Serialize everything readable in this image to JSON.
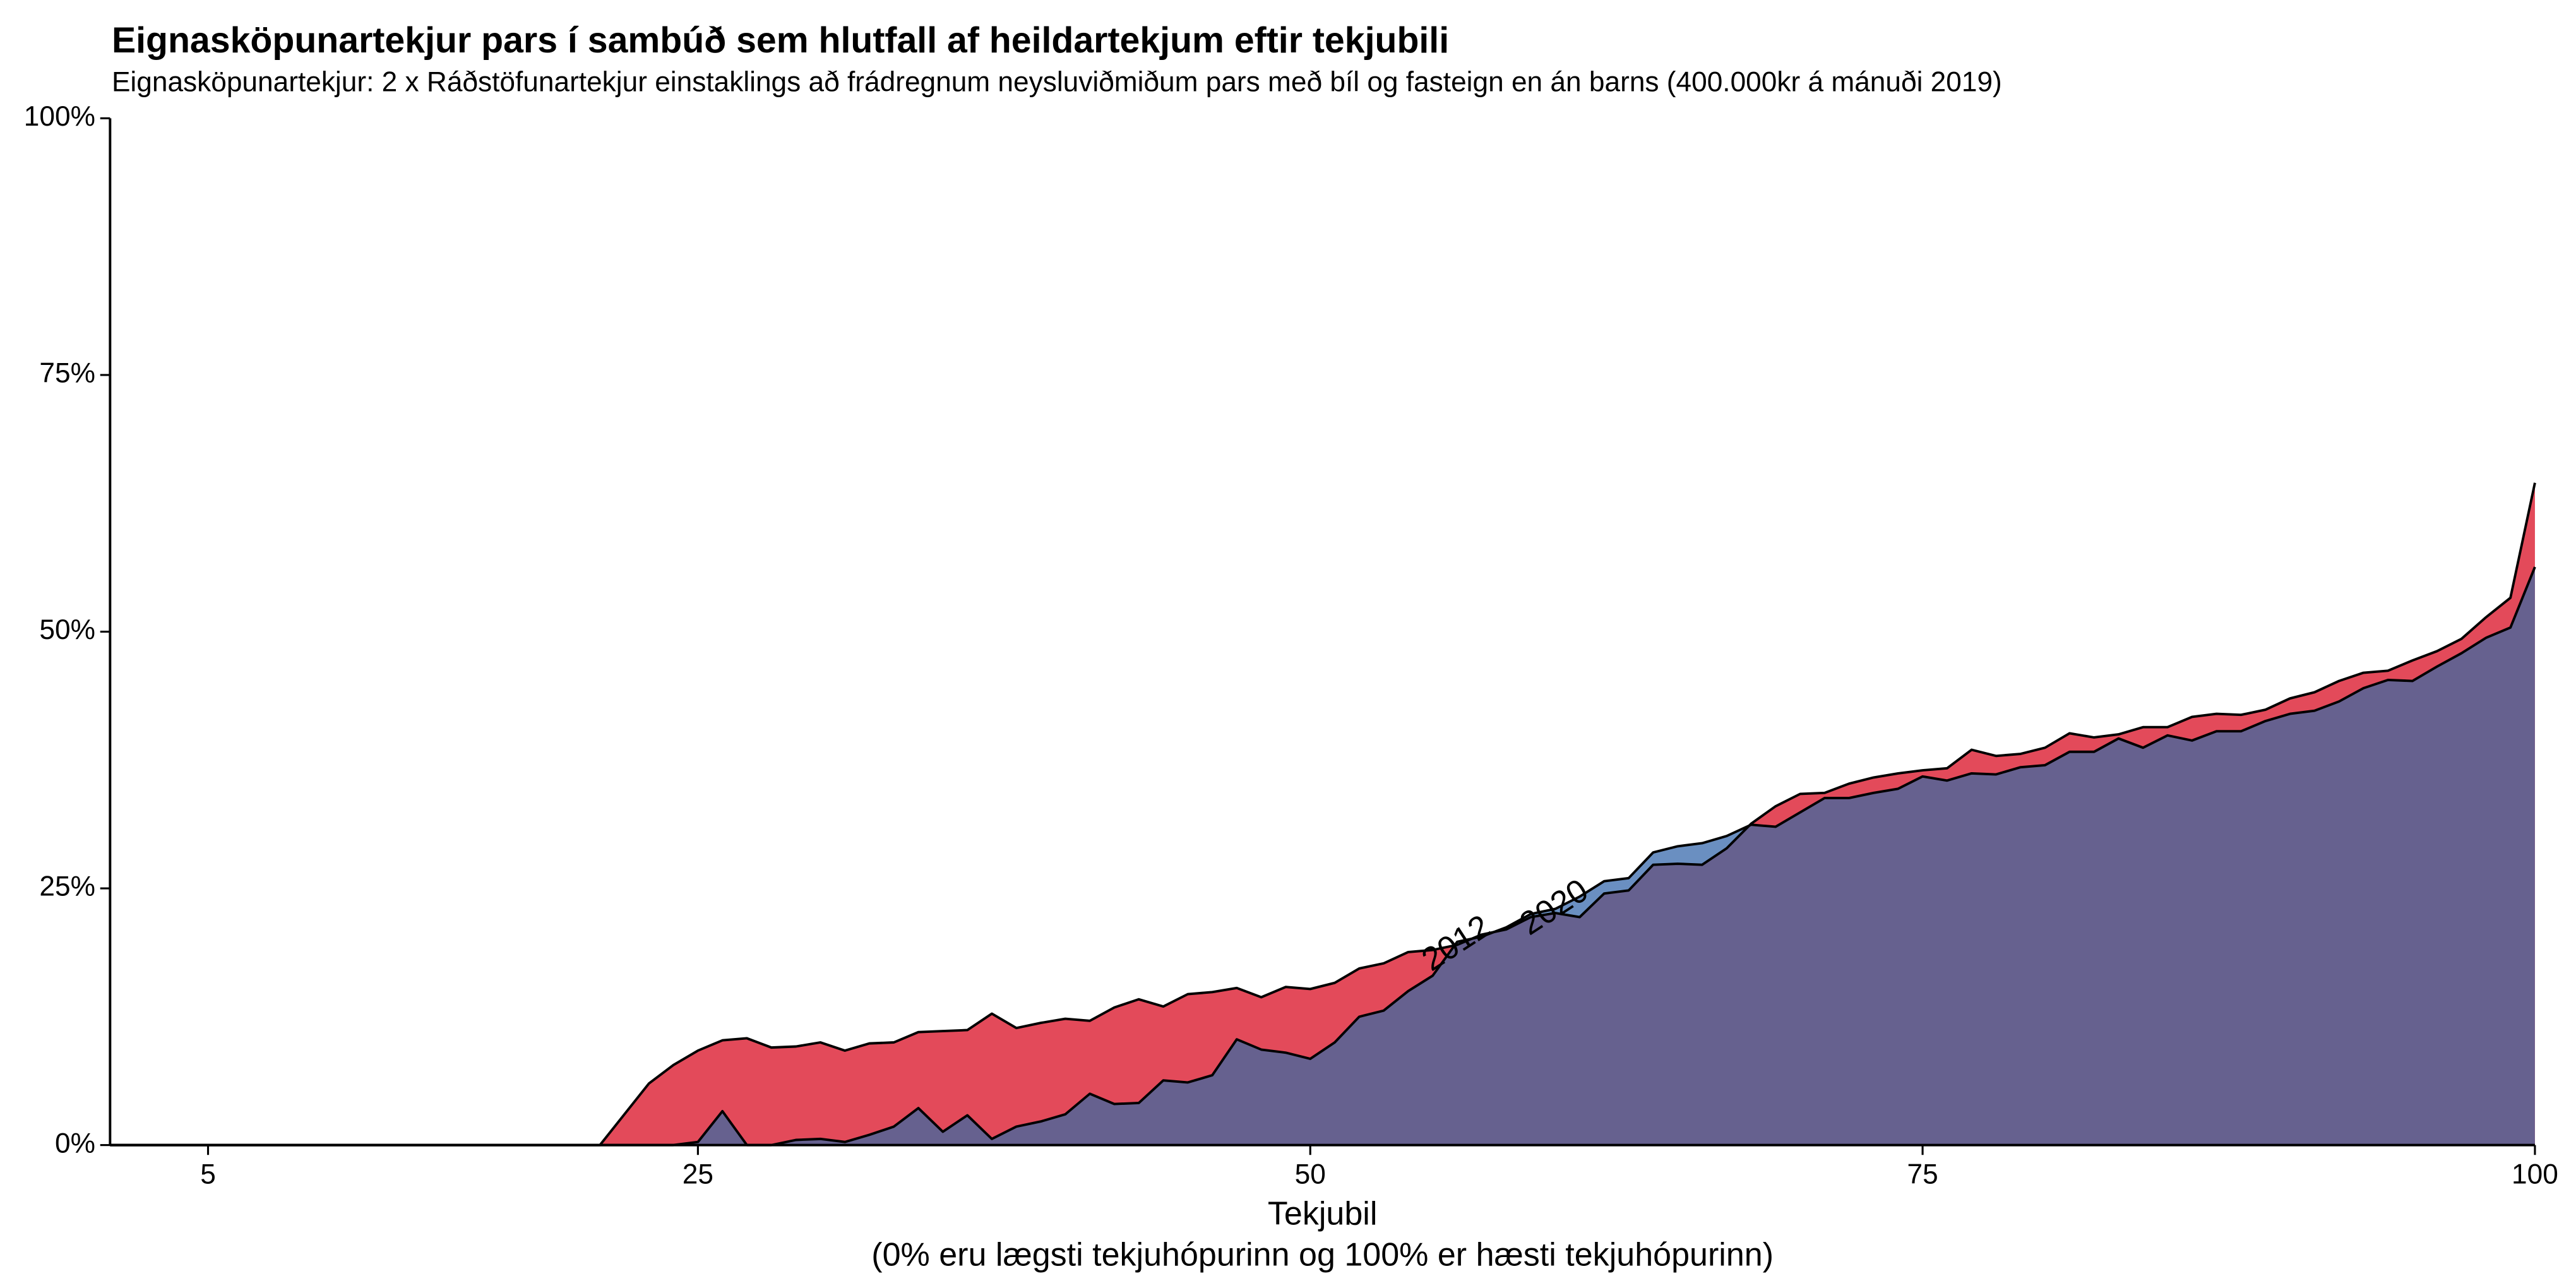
{
  "chart_data": {
    "type": "area",
    "title": "Eignasköpunartekjur pars í sambúð sem hlutfall af heildartekjum eftir tekjubili",
    "subtitle": "Eignasköpunartekjur: 2 x Ráðstöfunartekjur einstaklings að frádregnum neysluviðmiðum pars með bíl og fasteign en án barns (400.000kr á mánuði 2019)",
    "xlabel": [
      "Tekjubil",
      "(0% eru lægsti tekjuhópurinn og 100% er hæsti tekjuhópurinn)"
    ],
    "x": [
      1,
      2,
      3,
      4,
      5,
      6,
      7,
      8,
      9,
      10,
      11,
      12,
      13,
      14,
      15,
      16,
      17,
      18,
      19,
      20,
      21,
      22,
      23,
      24,
      25,
      26,
      27,
      28,
      29,
      30,
      31,
      32,
      33,
      34,
      35,
      36,
      37,
      38,
      39,
      40,
      41,
      42,
      43,
      44,
      45,
      46,
      47,
      48,
      49,
      50,
      51,
      52,
      53,
      54,
      55,
      56,
      57,
      58,
      59,
      60,
      61,
      62,
      63,
      64,
      65,
      66,
      67,
      68,
      69,
      70,
      71,
      72,
      73,
      74,
      75,
      76,
      77,
      78,
      79,
      80,
      81,
      82,
      83,
      84,
      85,
      86,
      87,
      88,
      89,
      90,
      91,
      92,
      93,
      94,
      95,
      96,
      97,
      98,
      99,
      100
    ],
    "series": [
      {
        "name": "2012",
        "color": "#e34a5a",
        "values": [
          0,
          0,
          0,
          0,
          0,
          0,
          0,
          0,
          0,
          0,
          0,
          0,
          0,
          0,
          0,
          0,
          0,
          0,
          0,
          0,
          0,
          3,
          6,
          7.8,
          9.2,
          10.2,
          10.4,
          9.5,
          9.6,
          10,
          9.2,
          9.9,
          10,
          11,
          11.1,
          11.2,
          12.8,
          11.4,
          11.9,
          12.3,
          12.1,
          13.4,
          14.2,
          13.5,
          14.7,
          14.9,
          15.3,
          14.4,
          15.4,
          15.2,
          15.8,
          17.2,
          17.7,
          18.8,
          19,
          19.5,
          20.5,
          21,
          22.2,
          22.6,
          22.2,
          24.5,
          24.8,
          27.3,
          27.4,
          27.3,
          28.9,
          31.3,
          33,
          34.2,
          34.3,
          35.2,
          35.8,
          36.2,
          36.5,
          36.7,
          38.5,
          37.9,
          38.1,
          38.7,
          40.1,
          39.7,
          40,
          40.7,
          40.7,
          41.7,
          42,
          41.9,
          42.4,
          43.5,
          44.1,
          45.2,
          46,
          46.2,
          47.2,
          48.1,
          49.3,
          51.4,
          53.3,
          64.5
        ]
      },
      {
        "name": "2020",
        "color": "#6a8fc1",
        "values": [
          0,
          0,
          0,
          0,
          0,
          0,
          0,
          0,
          0,
          0,
          0,
          0,
          0,
          0,
          0,
          0,
          0,
          0,
          0,
          0,
          0,
          0,
          0,
          0,
          0.3,
          3.3,
          0,
          0,
          0.5,
          0.6,
          0.3,
          1,
          1.8,
          3.6,
          1.3,
          2.9,
          0.6,
          1.8,
          2.3,
          3,
          5,
          4,
          4.1,
          6.3,
          6.1,
          6.8,
          10.3,
          9.3,
          9,
          8.4,
          10,
          12.5,
          13.1,
          15,
          16.5,
          19.8,
          20.3,
          21.2,
          22.5,
          23,
          24.2,
          25.7,
          26,
          28.5,
          29.1,
          29.4,
          30.1,
          31.2,
          31,
          32.4,
          33.8,
          33.8,
          34.3,
          34.7,
          35.9,
          35.5,
          36.2,
          36.1,
          36.8,
          37,
          38.3,
          38.3,
          39.6,
          38.7,
          39.9,
          39.4,
          40.3,
          40.3,
          41.3,
          42,
          42.3,
          43.2,
          44.5,
          45.3,
          45.2,
          46.6,
          47.9,
          49.4,
          50.4,
          56.3
        ]
      }
    ],
    "overlap_color": "#66618f",
    "xlim": [
      1,
      100
    ],
    "xticks": [
      5,
      25,
      50,
      75,
      100
    ],
    "ylim": [
      0,
      100
    ],
    "yticks": [
      {
        "value": 0,
        "label": "0%"
      },
      {
        "value": 25,
        "label": "25%"
      },
      {
        "value": 50,
        "label": "50%"
      },
      {
        "value": 75,
        "label": "75%"
      },
      {
        "value": 100,
        "label": "100%"
      }
    ],
    "grid": false
  }
}
